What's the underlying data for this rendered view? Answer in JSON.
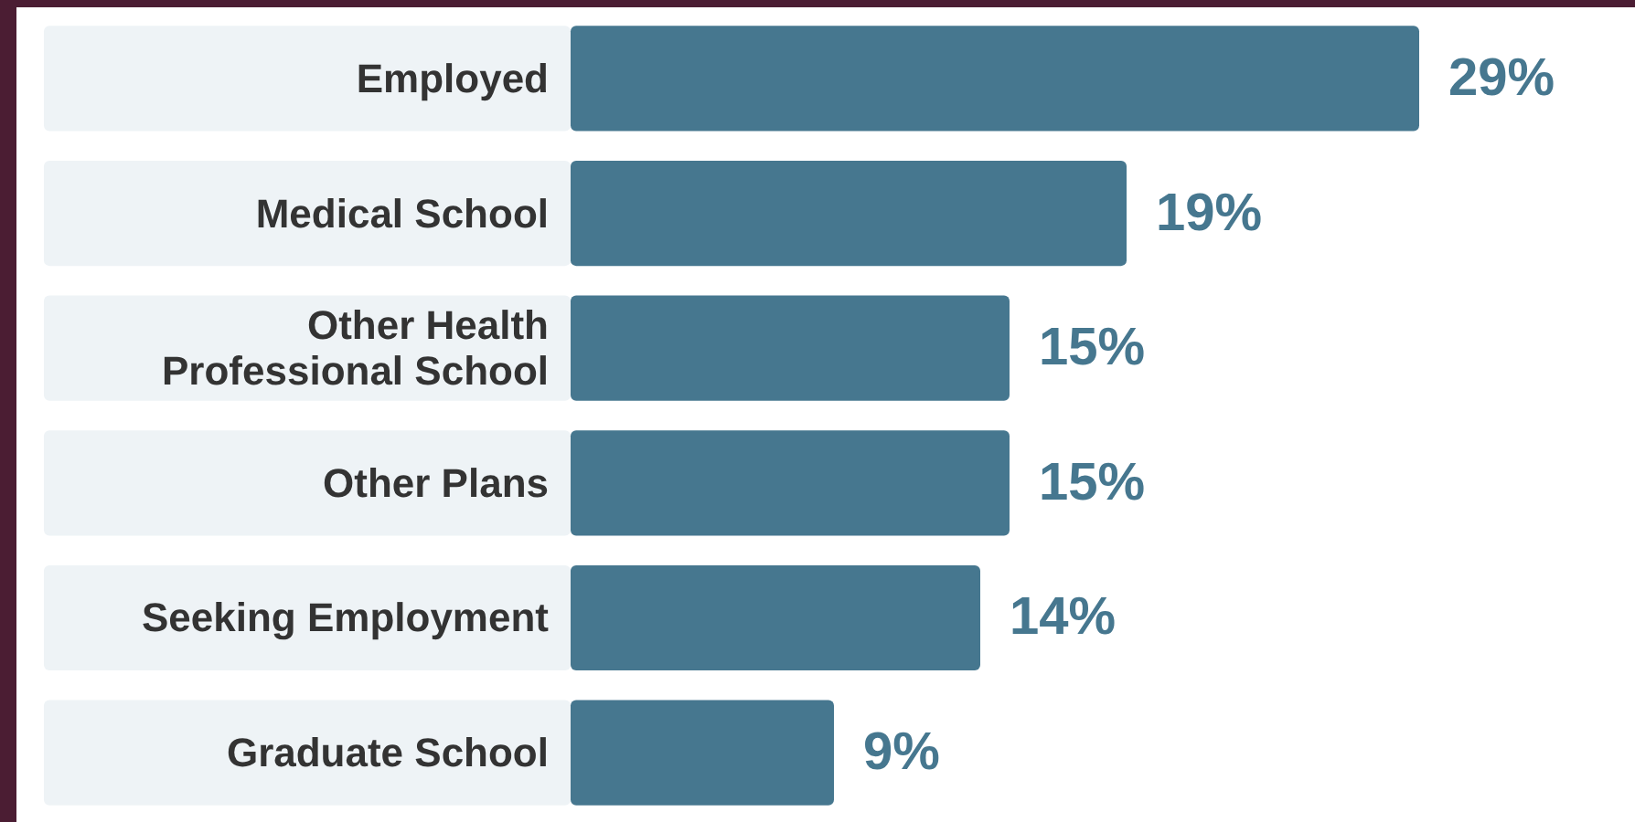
{
  "chart_data": {
    "type": "bar",
    "orientation": "horizontal",
    "categories": [
      "Employed",
      "Medical School",
      "Other Health Professional School",
      "Other Plans",
      "Seeking Employment",
      "Graduate School"
    ],
    "values": [
      29,
      19,
      15,
      15,
      14,
      9
    ],
    "value_labels": [
      "29%",
      "19%",
      "15%",
      "15%",
      "14%",
      "9%"
    ],
    "color": "#46778f"
  }
}
